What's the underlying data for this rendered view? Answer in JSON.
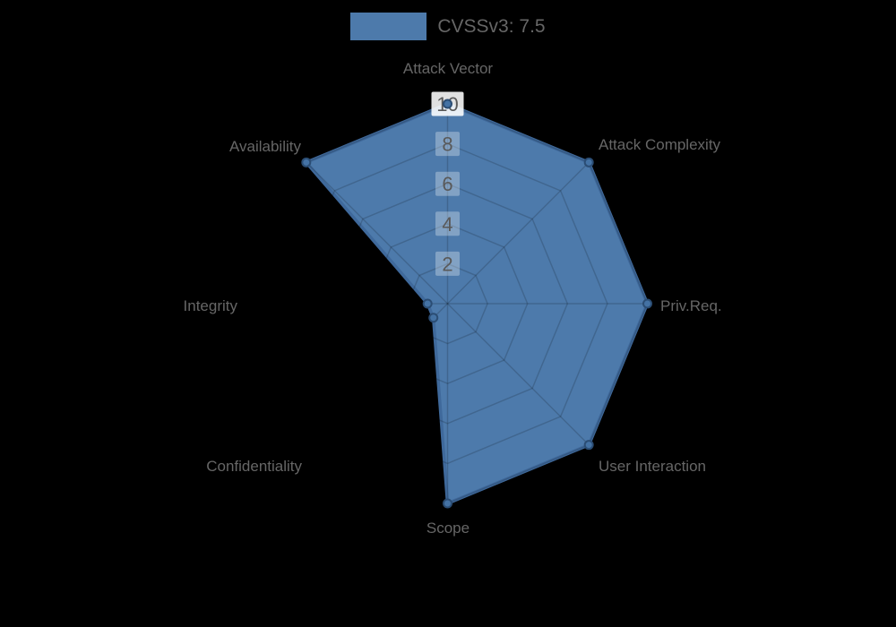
{
  "legend": {
    "label": "CVSSv3: 7.5",
    "swatch_color": "#4d7aab"
  },
  "chart_data": {
    "type": "radar",
    "title": "",
    "categories": [
      "Attack Vector",
      "Attack Complexity",
      "Priv.Req.",
      "User Interaction",
      "Scope",
      "Confidentiality",
      "Integrity",
      "Availability"
    ],
    "series": [
      {
        "name": "CVSSv3: 7.5",
        "values": [
          10,
          10,
          10,
          10,
          10,
          1,
          1,
          10
        ]
      }
    ],
    "rlim": [
      0,
      10
    ],
    "ticks": [
      2,
      4,
      6,
      8,
      10
    ],
    "grid": true,
    "legend_position": "top",
    "colors": {
      "fill": "#4d7aab",
      "stroke": "#3f699b",
      "marker": "#4472a4",
      "marker_border": "#2b4d74",
      "grid_line": "rgba(0,0,0,0.16)",
      "axis_label": "#666666",
      "tick_text": "#595959",
      "tick_backdrop": "rgba(255,255,255,0.30)",
      "tick_backdrop_outer": "rgba(255,255,255,0.88)"
    }
  }
}
